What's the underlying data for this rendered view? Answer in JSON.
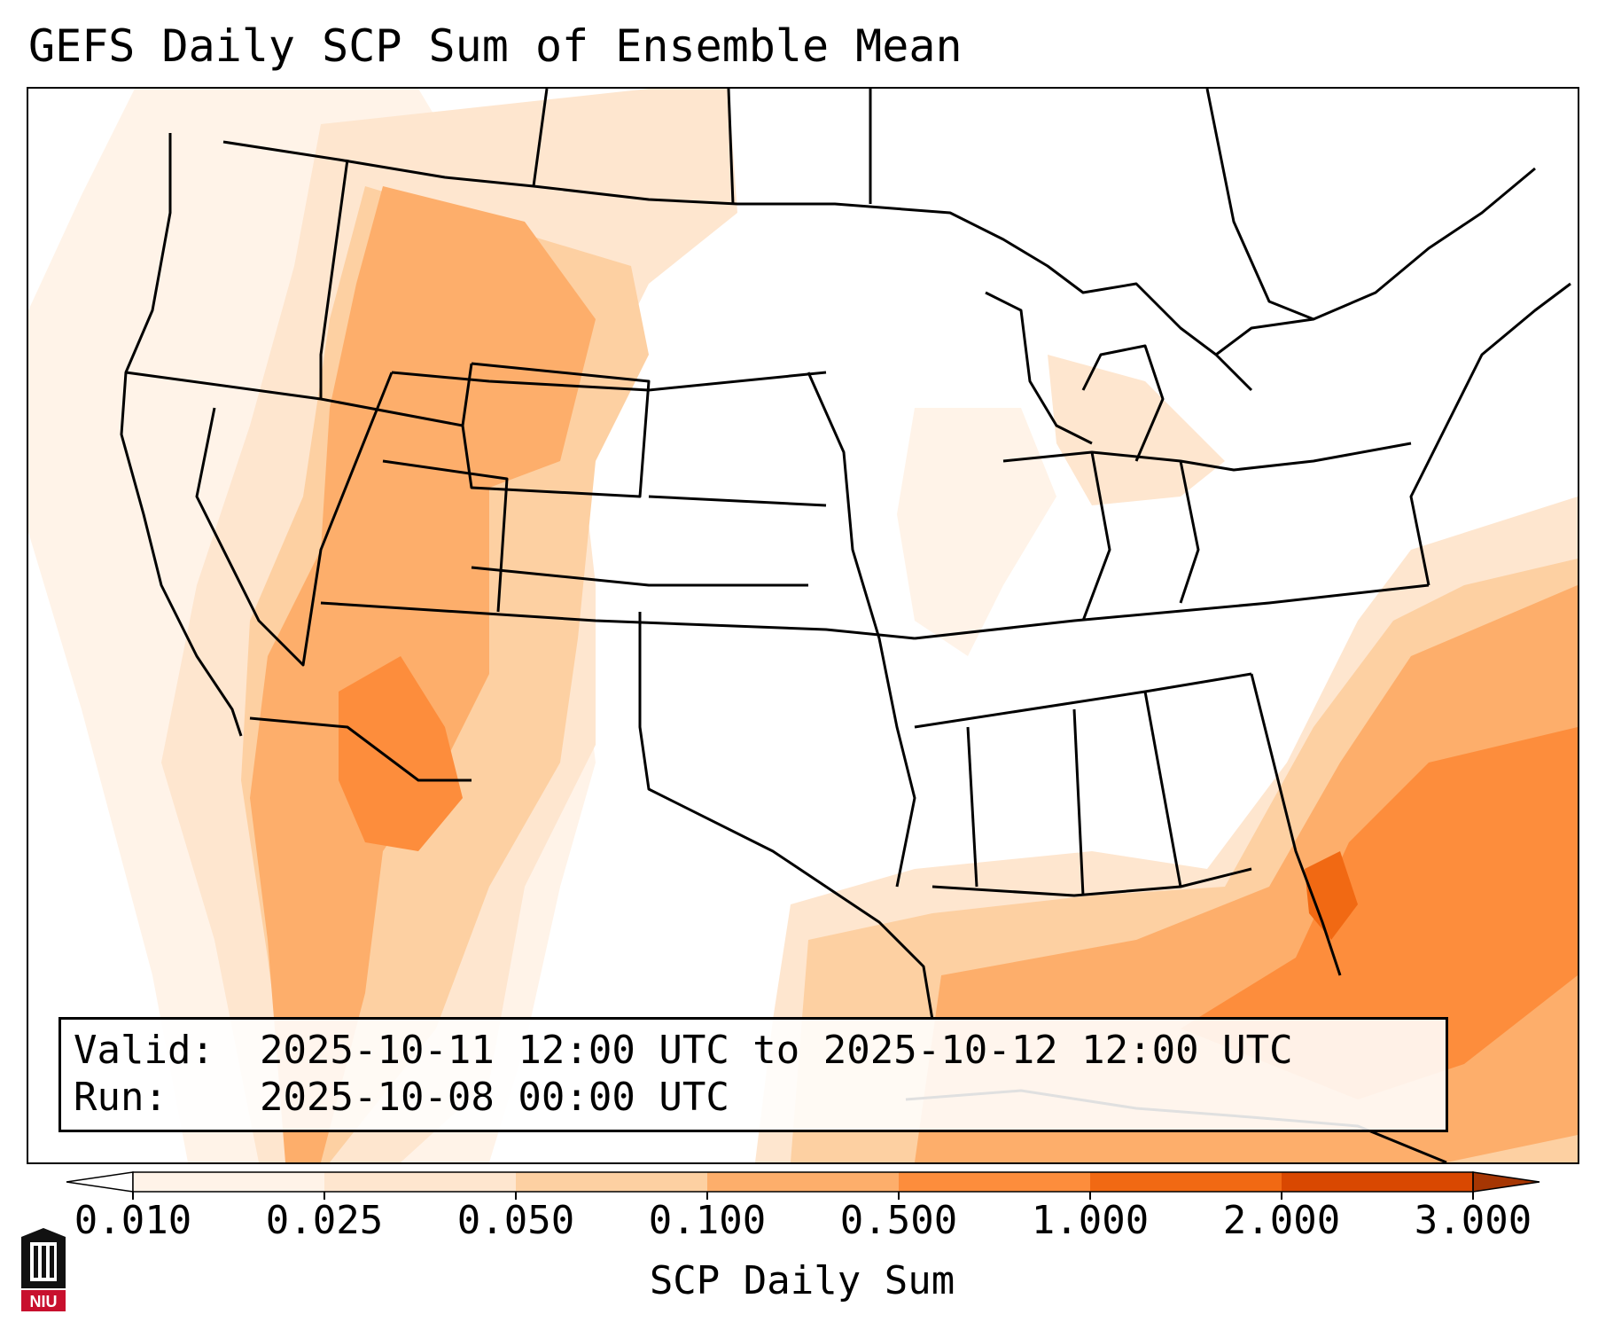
{
  "title": "GEFS Daily SCP Sum of Ensemble Mean",
  "valid_box": {
    "valid_label": "Valid:",
    "valid_value": "2025-10-11 12:00 UTC to 2025-10-12 12:00 UTC",
    "run_label": "Run:",
    "run_value": "2025-10-08 00:00 UTC"
  },
  "colorbar": {
    "label": "SCP Daily Sum",
    "ticks": [
      "0.010",
      "0.025",
      "0.050",
      "0.100",
      "0.500",
      "1.000",
      "2.000",
      "3.000"
    ],
    "colors": [
      "#fff3e8",
      "#fee6cf",
      "#fdd0a2",
      "#fdae6b",
      "#fd8d3c",
      "#f16913",
      "#d94801",
      "#a63603"
    ],
    "extend": "both"
  },
  "logo": {
    "text": "NIU",
    "icon": "niu-logo-icon"
  }
}
